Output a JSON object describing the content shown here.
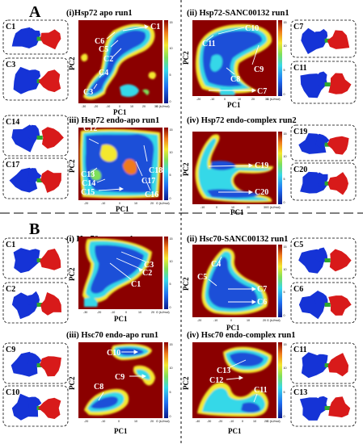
{
  "colors": {
    "background_high": "#8b0000",
    "basin": "#1f4fd8",
    "protein_domain_a": "#1533d6",
    "protein_domain_b": "#d81a1a",
    "linker": "#2ea82e"
  },
  "sections": [
    {
      "letter": "A"
    },
    {
      "letter": "B"
    }
  ],
  "panels": [
    {
      "title": "(i)Hsp72 apo run1",
      "xlabel": "PC1",
      "ylabel": "PC2",
      "cbar_label": "G (kJ/mol)",
      "xticks": [
        "-30",
        "-20",
        "-10",
        "0",
        "10",
        "20",
        "30"
      ],
      "cbar_ticks": [
        "0",
        "5",
        "10",
        "15"
      ],
      "clusters": [
        "C1",
        "C6",
        "C5",
        "C2",
        "C4",
        "C3"
      ]
    },
    {
      "title": "(ii) Hsp72-SANC00132 run1",
      "xlabel": "PC1",
      "ylabel": "PC2",
      "cbar_label": "G (kJ/mol)",
      "xticks": [
        "-20",
        "-10",
        "0",
        "10",
        "20",
        "30"
      ],
      "cbar_ticks": [
        "0",
        "5",
        "10",
        "15"
      ],
      "clusters": [
        "C10",
        "C11",
        "C9",
        "C8",
        "C7"
      ]
    },
    {
      "title": "(iii) Hsp72 endo-apo run1",
      "xlabel": "PC1",
      "ylabel": "PC2",
      "cbar_label": "G (kJ/mol)",
      "xticks": [
        "-20",
        "-10",
        "0",
        "10",
        "20"
      ],
      "cbar_ticks": [
        "0",
        "5",
        "10",
        "15"
      ],
      "clusters": [
        "C12",
        "C18",
        "C13",
        "C17",
        "C14",
        "C15",
        "C16"
      ]
    },
    {
      "title": "(iv) Hsp72 endo-complex run2",
      "xlabel": "PC1",
      "ylabel": "PC2",
      "cbar_label": "G (kJ/mol)",
      "xticks": [
        "-10",
        "0",
        "10",
        "20",
        "30"
      ],
      "cbar_ticks": [
        "0",
        "5",
        "10",
        "15"
      ],
      "clusters": [
        "C19",
        "C20"
      ]
    },
    {
      "title": "(i) Hsc70 apo run1",
      "xlabel": "PC1",
      "ylabel": "PC2",
      "cbar_label": "G (kJ/mol)",
      "xticks": [
        "-30",
        "-20",
        "-10",
        "0",
        "10",
        "20"
      ],
      "cbar_ticks": [
        "0",
        "5",
        "10",
        "15"
      ],
      "clusters": [
        "C3",
        "C2",
        "C1"
      ]
    },
    {
      "title": "(ii) Hsc70-SANC00132 run1",
      "xlabel": "PC1",
      "ylabel": "PC2",
      "cbar_label": "G (kJ/mol)",
      "xticks": [
        "-20",
        "-10",
        "0",
        "10",
        "20"
      ],
      "cbar_ticks": [
        "0",
        "5",
        "10",
        "15"
      ],
      "clusters": [
        "C4",
        "C5",
        "C7",
        "C6"
      ]
    },
    {
      "title": "(iii) Hsc70 endo-apo run1",
      "xlabel": "PC1",
      "ylabel": "PC2",
      "cbar_label": "G (kJ/mol)",
      "xticks": [
        "-20",
        "-10",
        "0",
        "10",
        "20"
      ],
      "cbar_ticks": [
        "0",
        "5",
        "10",
        "15"
      ],
      "clusters": [
        "C10",
        "C9",
        "C8"
      ]
    },
    {
      "title": "(iv) Hsc70 endo-complex run1",
      "xlabel": "PC1",
      "ylabel": "PC2",
      "cbar_label": "G (kJ/mol)",
      "xticks": [
        "-40",
        "-30",
        "-20",
        "-10",
        "0",
        "10",
        "20"
      ],
      "cbar_ticks": [
        "0",
        "5",
        "10",
        "15"
      ],
      "clusters": [
        "C13",
        "C12",
        "C11"
      ]
    }
  ],
  "structures": [
    {
      "labels": [
        "C1",
        "C3"
      ]
    },
    {
      "labels": [
        "C7",
        "C11"
      ]
    },
    {
      "labels": [
        "C14",
        "C17"
      ]
    },
    {
      "labels": [
        "C19",
        "C20"
      ]
    },
    {
      "labels": [
        "C1",
        "C2"
      ]
    },
    {
      "labels": [
        "C5",
        "C6"
      ]
    },
    {
      "labels": [
        "C9",
        "C10"
      ]
    },
    {
      "labels": [
        "C11",
        "C13"
      ]
    }
  ],
  "chart_data": [
    {
      "type": "heatmap",
      "title": "(i)Hsp72 apo run1",
      "xlabel": "PC1",
      "ylabel": "PC2",
      "zlabel": "G (kJ/mol)",
      "zlim": [
        0,
        16
      ],
      "clusters": [
        "C1",
        "C6",
        "C5",
        "C2",
        "C4",
        "C3"
      ]
    },
    {
      "type": "heatmap",
      "title": "(ii) Hsp72-SANC00132 run1",
      "xlabel": "PC1",
      "ylabel": "PC2",
      "zlabel": "G (kJ/mol)",
      "zlim": [
        0,
        16
      ],
      "clusters": [
        "C10",
        "C11",
        "C9",
        "C8",
        "C7"
      ]
    },
    {
      "type": "heatmap",
      "title": "(iii) Hsp72 endo-apo run1",
      "xlabel": "PC1",
      "ylabel": "PC2",
      "zlabel": "G (kJ/mol)",
      "zlim": [
        0,
        16
      ],
      "clusters": [
        "C12",
        "C18",
        "C13",
        "C17",
        "C14",
        "C15",
        "C16"
      ]
    },
    {
      "type": "heatmap",
      "title": "(iv) Hsp72 endo-complex run2",
      "xlabel": "PC1",
      "ylabel": "PC2",
      "zlabel": "G (kJ/mol)",
      "zlim": [
        0,
        16
      ],
      "clusters": [
        "C19",
        "C20"
      ]
    },
    {
      "type": "heatmap",
      "title": "(i) Hsc70 apo run1",
      "xlabel": "PC1",
      "ylabel": "PC2",
      "zlabel": "G (kJ/mol)",
      "zlim": [
        0,
        16
      ],
      "clusters": [
        "C3",
        "C2",
        "C1"
      ]
    },
    {
      "type": "heatmap",
      "title": "(ii) Hsc70-SANC00132 run1",
      "xlabel": "PC1",
      "ylabel": "PC2",
      "zlabel": "G (kJ/mol)",
      "zlim": [
        0,
        16
      ],
      "clusters": [
        "C4",
        "C5",
        "C7",
        "C6"
      ]
    },
    {
      "type": "heatmap",
      "title": "(iii) Hsc70 endo-apo run1",
      "xlabel": "PC1",
      "ylabel": "PC2",
      "zlabel": "G (kJ/mol)",
      "zlim": [
        0,
        16
      ],
      "clusters": [
        "C10",
        "C9",
        "C8"
      ]
    },
    {
      "type": "heatmap",
      "title": "(iv) Hsc70 endo-complex run1",
      "xlabel": "PC1",
      "ylabel": "PC2",
      "zlabel": "G (kJ/mol)",
      "zlim": [
        0,
        16
      ],
      "clusters": [
        "C13",
        "C12",
        "C11"
      ]
    }
  ]
}
